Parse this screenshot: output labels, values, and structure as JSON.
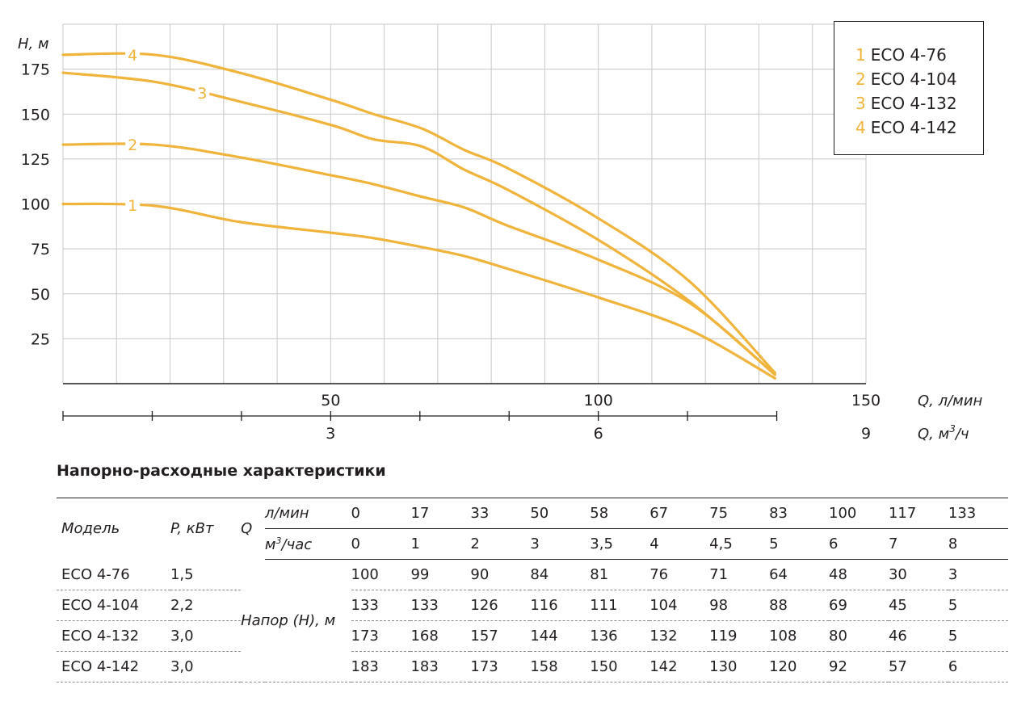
{
  "chart_data": {
    "type": "line",
    "ylabel": "H, м",
    "yticks": [
      25,
      50,
      75,
      100,
      125,
      150,
      175
    ],
    "ylim": [
      0,
      200
    ],
    "xlim": [
      0,
      150
    ],
    "x_flow_label": "Q, л/мин",
    "x_flow_ticks": [
      50,
      100,
      150
    ],
    "x_cubic_label_prefix": "Q, м",
    "x_cubic_label_sup": "3",
    "x_cubic_label_suffix": "/ч",
    "x_cubic_ticks": [
      3,
      6,
      9
    ],
    "grid": true,
    "legend_position": "top-right",
    "line_color": "#f0b43c",
    "series": [
      {
        "name": "ECO 4-76",
        "marker": "1",
        "x": [
          0,
          17,
          33,
          50,
          58,
          67,
          75,
          83,
          100,
          117,
          133
        ],
        "y": [
          100,
          99,
          90,
          84,
          81,
          76,
          71,
          64,
          48,
          30,
          3
        ]
      },
      {
        "name": "ECO 4-104",
        "marker": "2",
        "x": [
          0,
          17,
          33,
          50,
          58,
          67,
          75,
          83,
          100,
          117,
          133
        ],
        "y": [
          133,
          133,
          126,
          116,
          111,
          104,
          98,
          88,
          69,
          45,
          5
        ]
      },
      {
        "name": "ECO 4-132",
        "marker": "3",
        "x": [
          0,
          17,
          33,
          50,
          58,
          67,
          75,
          83,
          100,
          117,
          133
        ],
        "y": [
          173,
          168,
          157,
          144,
          136,
          132,
          119,
          108,
          80,
          46,
          5
        ]
      },
      {
        "name": "ECO 4-142",
        "marker": "4",
        "x": [
          0,
          17,
          33,
          50,
          58,
          67,
          75,
          83,
          100,
          117,
          133
        ],
        "y": [
          183,
          183,
          173,
          158,
          150,
          142,
          130,
          120,
          92,
          57,
          6
        ]
      }
    ]
  },
  "legend": [
    {
      "num": "1",
      "label": "ECO 4-76"
    },
    {
      "num": "2",
      "label": "ECO 4-104"
    },
    {
      "num": "3",
      "label": "ECO 4-132"
    },
    {
      "num": "4",
      "label": "ECO 4-142"
    }
  ],
  "table": {
    "title": "Напорно-расходные характеристики",
    "model_header": "Модель",
    "power_header": "P, кВт",
    "q_header": "Q",
    "flow_unit": "л/мин",
    "cubic_unit_prefix": "м",
    "cubic_unit_sup": "3",
    "cubic_unit_suffix": "/час",
    "flow_values": [
      "0",
      "17",
      "33",
      "50",
      "58",
      "67",
      "75",
      "83",
      "100",
      "117",
      "133"
    ],
    "cubic_values": [
      "0",
      "1",
      "2",
      "3",
      "3,5",
      "4",
      "4,5",
      "5",
      "6",
      "7",
      "8"
    ],
    "head_label": "Напор (Н), м",
    "rows": [
      {
        "model": "ECO 4-76",
        "power": "1,5",
        "values": [
          "100",
          "99",
          "90",
          "84",
          "81",
          "76",
          "71",
          "64",
          "48",
          "30",
          "3"
        ]
      },
      {
        "model": "ECO 4-104",
        "power": "2,2",
        "values": [
          "133",
          "133",
          "126",
          "116",
          "111",
          "104",
          "98",
          "88",
          "69",
          "45",
          "5"
        ]
      },
      {
        "model": "ECO 4-132",
        "power": "3,0",
        "values": [
          "173",
          "168",
          "157",
          "144",
          "136",
          "132",
          "119",
          "108",
          "80",
          "46",
          "5"
        ]
      },
      {
        "model": "ECO 4-142",
        "power": "3,0",
        "values": [
          "183",
          "183",
          "173",
          "158",
          "150",
          "142",
          "130",
          "120",
          "92",
          "57",
          "6"
        ]
      }
    ]
  }
}
